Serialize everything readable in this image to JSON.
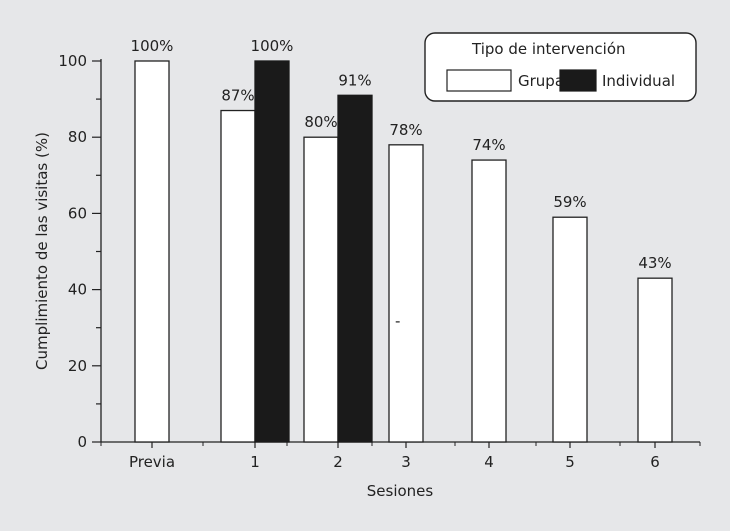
{
  "chart_data": {
    "type": "bar",
    "title": "",
    "xlabel": "Sesiones",
    "ylabel": "Cumplimiento de las visitas (%)",
    "ylim": [
      0,
      100
    ],
    "yticks": [
      0,
      20,
      40,
      60,
      80,
      100
    ],
    "categories": [
      "Previa",
      "1",
      "2",
      "3",
      "4",
      "5",
      "6"
    ],
    "series": [
      {
        "name": "Grupal",
        "color": "#ffffff",
        "values": [
          100,
          87,
          80,
          78,
          74,
          59,
          43
        ],
        "labels": [
          "100%",
          "87%",
          "80%",
          "78%",
          "74%",
          "59%",
          "43%"
        ]
      },
      {
        "name": "Individual",
        "color": "#1a1a1a",
        "values": [
          null,
          100,
          91,
          null,
          null,
          null,
          null
        ],
        "labels": [
          null,
          "100%",
          "91%",
          null,
          null,
          null,
          null
        ]
      }
    ],
    "legend": {
      "title": "Tipo de intervención",
      "position": "top-right"
    },
    "grid": false,
    "stray_mark": "-"
  }
}
